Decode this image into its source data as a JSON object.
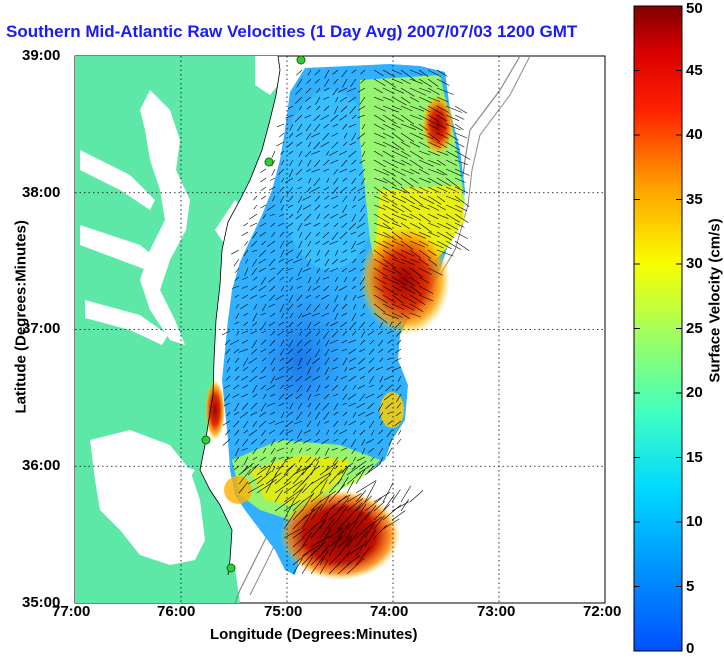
{
  "title": "Southern Mid-Atlantic Raw Velocities (1 Day Avg) 2007/07/03 1200 GMT",
  "axes": {
    "x_label": "Longitude (Degrees:Minutes)",
    "y_label": "Latitude (Degrees:Minutes)",
    "x_ticks": [
      "77:00",
      "76:00",
      "75:00",
      "74:00",
      "73:00",
      "72:00"
    ],
    "y_ticks": [
      "39:00",
      "38:00",
      "37:00",
      "36:00",
      "35:00"
    ],
    "x_range": [
      -77,
      -72
    ],
    "y_range": [
      35,
      39
    ],
    "grid": "dotted"
  },
  "colorbar": {
    "label": "Surface Velocity (cm/s)",
    "ticks": [
      "0",
      "5",
      "10",
      "15",
      "20",
      "25",
      "30",
      "35",
      "40",
      "45",
      "50"
    ],
    "range": [
      0,
      50
    ],
    "colormap": "jet"
  },
  "colors": {
    "land": "#5ee8a8",
    "title": "#1a1aff",
    "station": "#33cc33"
  }
}
